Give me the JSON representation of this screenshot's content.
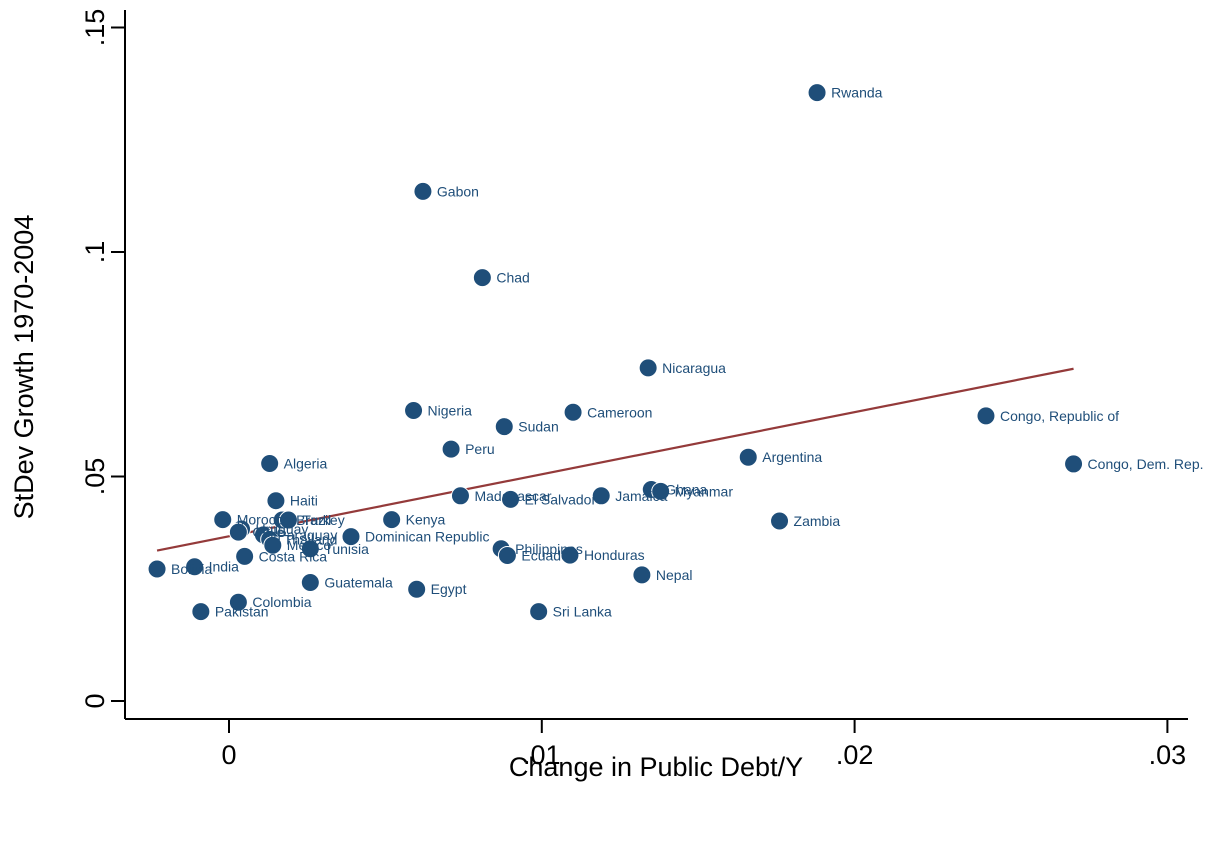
{
  "chart_data": {
    "type": "scatter",
    "title": "",
    "xlabel": "Change in Public Debt/Y",
    "ylabel": "StDev Growth 1970-2004",
    "xlim": [
      -0.003,
      0.0305
    ],
    "ylim": [
      -0.003,
      0.155
    ],
    "x_ticks": [
      0,
      0.01,
      0.02,
      0.03
    ],
    "x_tick_labels": [
      "0",
      ".01",
      ".02",
      ".03"
    ],
    "y_ticks": [
      0,
      0.05,
      0.1,
      0.15
    ],
    "y_tick_labels": [
      "0",
      ".05",
      ".1",
      ".15"
    ],
    "grid": false,
    "legend": "none",
    "marker_color": "#1f4e79",
    "fit_color": "#943a3a",
    "fit_line": {
      "x": [
        -0.0023,
        0.027
      ],
      "y": [
        0.0335,
        0.074
      ]
    },
    "points": [
      {
        "label": "Rwanda",
        "x": 0.0188,
        "y": 0.1355
      },
      {
        "label": "Gabon",
        "x": 0.0062,
        "y": 0.1135
      },
      {
        "label": "Chad",
        "x": 0.0081,
        "y": 0.0943
      },
      {
        "label": "Nicaragua",
        "x": 0.0134,
        "y": 0.0742
      },
      {
        "label": "Congo, Republic of",
        "x": 0.0242,
        "y": 0.0635
      },
      {
        "label": "Nigeria",
        "x": 0.0059,
        "y": 0.0647
      },
      {
        "label": "Cameroon",
        "x": 0.011,
        "y": 0.0643
      },
      {
        "label": "Sudan",
        "x": 0.0088,
        "y": 0.0611
      },
      {
        "label": "Peru",
        "x": 0.0071,
        "y": 0.0561
      },
      {
        "label": "Argentina",
        "x": 0.0166,
        "y": 0.0543
      },
      {
        "label": "Congo, Dem. Rep.",
        "x": 0.027,
        "y": 0.0528
      },
      {
        "label": "Algeria",
        "x": 0.0013,
        "y": 0.0529
      },
      {
        "label": "Haiti",
        "x": 0.0015,
        "y": 0.0446
      },
      {
        "label": "Madagascar",
        "x": 0.0074,
        "y": 0.0457
      },
      {
        "label": "El Salvador",
        "x": 0.009,
        "y": 0.0449
      },
      {
        "label": "Jamaica",
        "x": 0.0119,
        "y": 0.0457
      },
      {
        "label": "Ghana",
        "x": 0.0135,
        "y": 0.0471
      },
      {
        "label": "Myanmar",
        "x": 0.0138,
        "y": 0.0467
      },
      {
        "label": "Zambia",
        "x": 0.0176,
        "y": 0.0401
      },
      {
        "label": "Kenya",
        "x": 0.0052,
        "y": 0.0404
      },
      {
        "label": "Morocco",
        "x": -0.0002,
        "y": 0.0404
      },
      {
        "label": "Brazil",
        "x": 0.0017,
        "y": 0.0403
      },
      {
        "label": "Turkey",
        "x": 0.0019,
        "y": 0.0403
      },
      {
        "label": "Uruguay",
        "x": 0.0004,
        "y": 0.0383
      },
      {
        "label": "Chile",
        "x": 0.0003,
        "y": 0.0376
      },
      {
        "label": "Paraguay",
        "x": 0.0011,
        "y": 0.037
      },
      {
        "label": "Thailand",
        "x": 0.0013,
        "y": 0.036
      },
      {
        "label": "Mexico",
        "x": 0.0014,
        "y": 0.0347
      },
      {
        "label": "Dominican Republic",
        "x": 0.0039,
        "y": 0.0366
      },
      {
        "label": "Tunisia",
        "x": 0.0026,
        "y": 0.0339
      },
      {
        "label": "Costa Rica",
        "x": 0.0005,
        "y": 0.0322
      },
      {
        "label": "Philippines",
        "x": 0.0087,
        "y": 0.0339
      },
      {
        "label": "Ecuador",
        "x": 0.0089,
        "y": 0.0324
      },
      {
        "label": "Honduras",
        "x": 0.0109,
        "y": 0.0325
      },
      {
        "label": "India",
        "x": -0.0011,
        "y": 0.0299
      },
      {
        "label": "Bolivia",
        "x": -0.0023,
        "y": 0.0294
      },
      {
        "label": "Nepal",
        "x": 0.0132,
        "y": 0.0281
      },
      {
        "label": "Guatemala",
        "x": 0.0026,
        "y": 0.0264
      },
      {
        "label": "Egypt",
        "x": 0.006,
        "y": 0.0249
      },
      {
        "label": "Colombia",
        "x": 0.0003,
        "y": 0.022
      },
      {
        "label": "Pakistan",
        "x": -0.0009,
        "y": 0.0199
      },
      {
        "label": "Sri Lanka",
        "x": 0.0099,
        "y": 0.0199
      }
    ]
  }
}
